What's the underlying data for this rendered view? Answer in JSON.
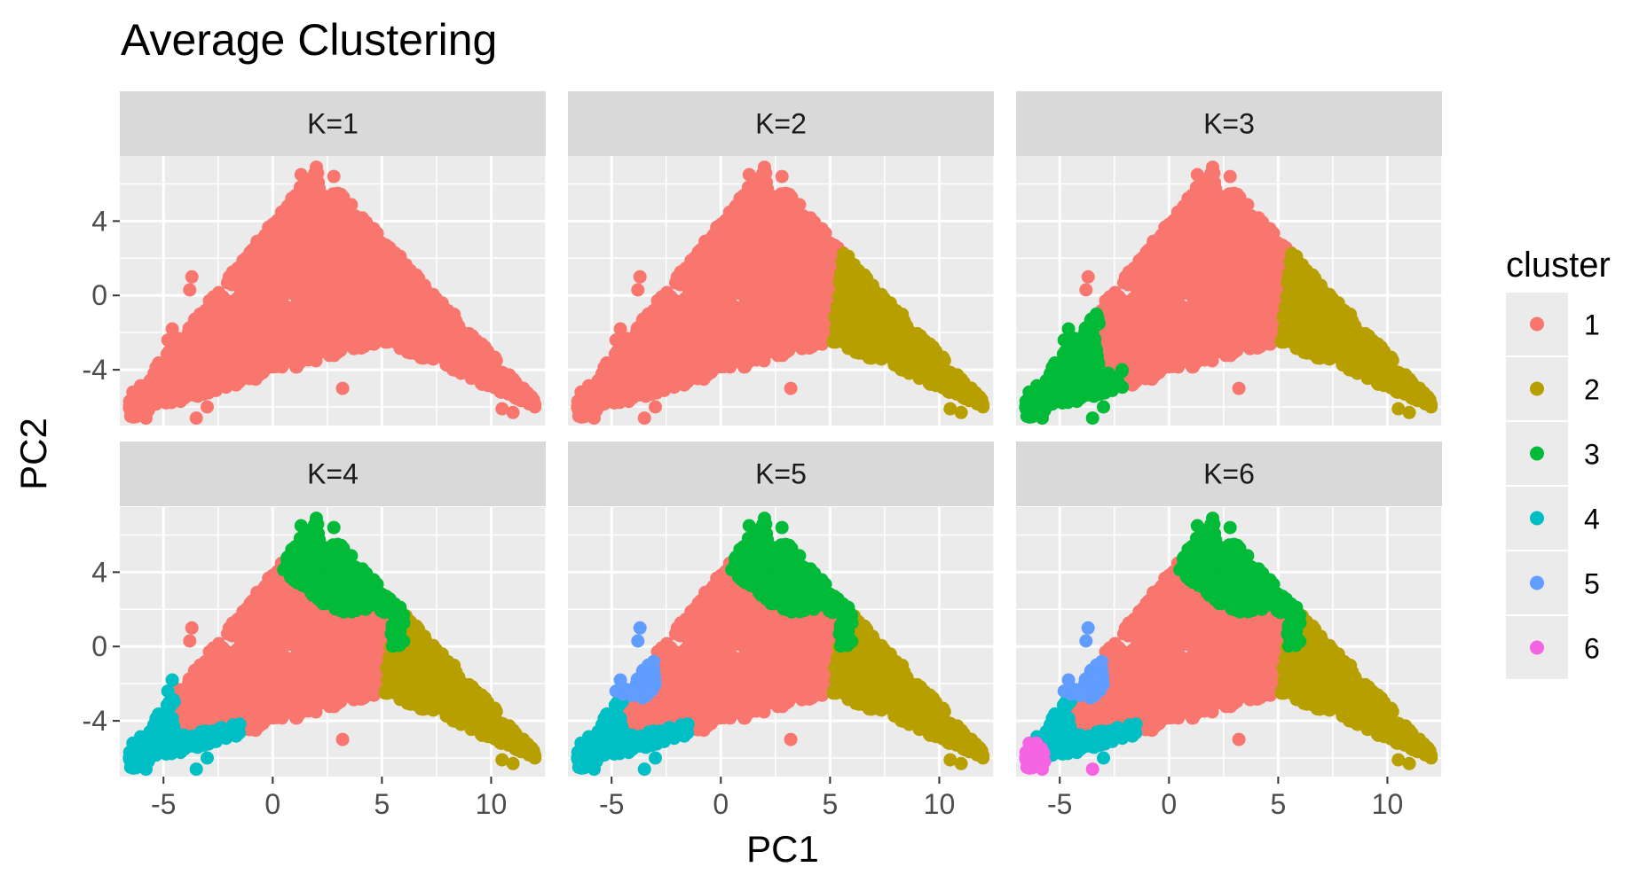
{
  "chart_data": {
    "type": "scatter",
    "title": "Average Clustering",
    "xlabel": "PC1",
    "ylabel": "PC2",
    "xlim": [
      -7,
      12.5
    ],
    "ylim": [
      -7,
      7.5
    ],
    "x_ticks": [
      -5,
      0,
      5,
      10
    ],
    "y_ticks": [
      -4,
      0,
      4
    ],
    "grid": true,
    "legend": {
      "title": "cluster",
      "placement": "right",
      "entries": [
        "1",
        "2",
        "3",
        "4",
        "5",
        "6"
      ]
    },
    "colors": {
      "1": "#F8766D",
      "2": "#B79F00",
      "3": "#00BA38",
      "4": "#00BFC4",
      "5": "#619CFF",
      "6": "#F564E3"
    },
    "panel_background": "#EBEBEB",
    "strip_background": "#D9D9D9",
    "facets": [
      {
        "label": "K=1",
        "k": 1
      },
      {
        "label": "K=2",
        "k": 2
      },
      {
        "label": "K=3",
        "k": 3
      },
      {
        "label": "K=4",
        "k": 4
      },
      {
        "label": "K=5",
        "k": 5
      },
      {
        "label": "K=6",
        "k": 6
      }
    ],
    "point_summary": {
      "overall_extent": {
        "x": [
          -6.5,
          12.0
        ],
        "y": [
          -6.7,
          6.9
        ]
      },
      "apex": [
        2,
        6.9
      ],
      "left_tip": [
        -6.5,
        -6.5
      ],
      "right_tip": [
        12,
        -6
      ]
    }
  }
}
